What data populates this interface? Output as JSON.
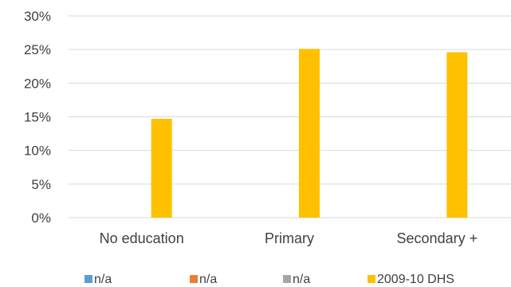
{
  "chart_data": {
    "type": "bar",
    "categories": [
      "No education",
      "Primary",
      "Secondary +"
    ],
    "series": [
      {
        "name": "n/a",
        "color": "#5B9BD5",
        "values": [
          null,
          null,
          null
        ]
      },
      {
        "name": "n/a",
        "color": "#ED7D31",
        "values": [
          null,
          null,
          null
        ]
      },
      {
        "name": "n/a",
        "color": "#A5A5A5",
        "values": [
          null,
          null,
          null
        ]
      },
      {
        "name": "2009-10 DHS",
        "color": "#FFC000",
        "values": [
          14.7,
          25.1,
          24.6
        ]
      }
    ],
    "yticks": [
      "0%",
      "5%",
      "10%",
      "15%",
      "20%",
      "25%",
      "30%"
    ],
    "ylim": [
      0,
      30
    ],
    "ystep": 5,
    "title": "",
    "xlabel": "",
    "ylabel": "",
    "grid": true,
    "gridColor": "#D9D9D9",
    "legend": "bottom"
  }
}
